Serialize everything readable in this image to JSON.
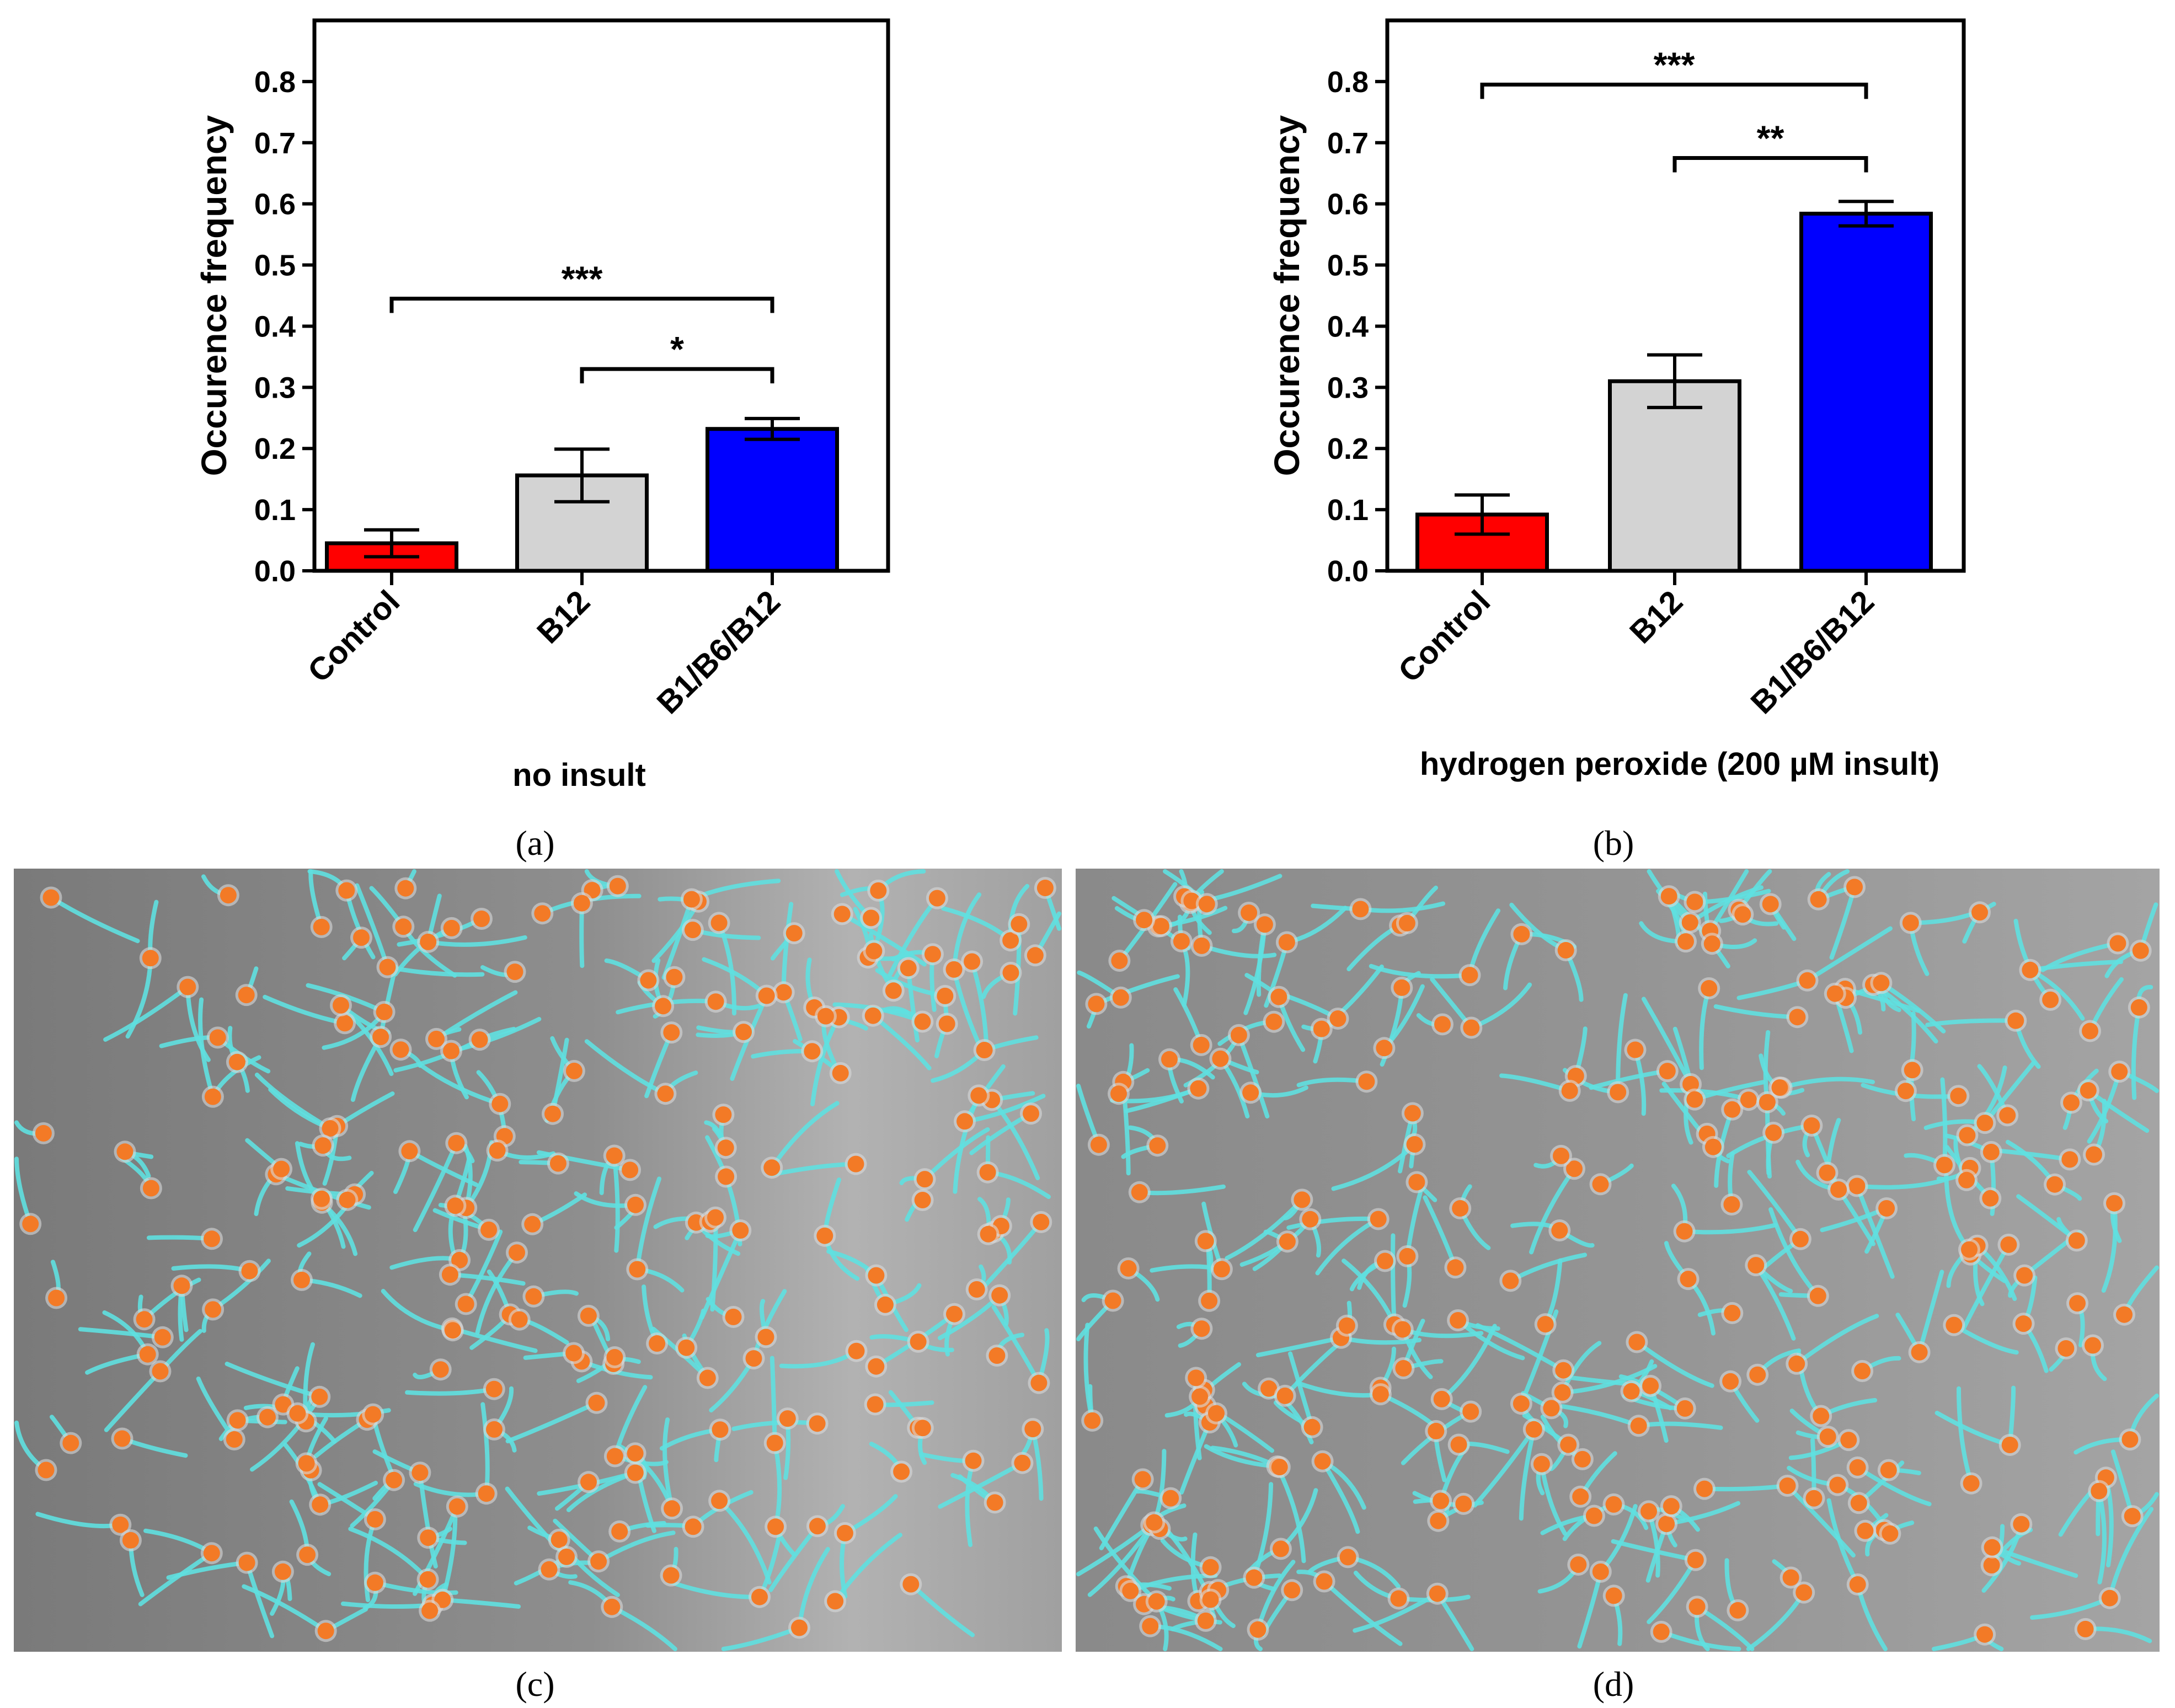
{
  "colors": {
    "control": "#ff0000",
    "b12": "#d3d3d3",
    "b1b6b12": "#0000ff",
    "soma": "#f37a26",
    "neurite": "#5fe0e0"
  },
  "chart_data": [
    {
      "type": "bar",
      "panel": "(a)",
      "xlabel": "no insult",
      "ylabel": "Occurence frequency",
      "ylim": [
        0,
        0.9
      ],
      "yticks": [
        "0.0",
        "0.1",
        "0.2",
        "0.3",
        "0.4",
        "0.5",
        "0.6",
        "0.7",
        "0.8"
      ],
      "categories": [
        "Control",
        "B12",
        "B1/B6/B12"
      ],
      "values": [
        0.045,
        0.156,
        0.232
      ],
      "errors": [
        0.022,
        0.043,
        0.017
      ],
      "significance": [
        {
          "from": 0,
          "to": 2,
          "label": "***",
          "y": 0.445
        },
        {
          "from": 1,
          "to": 2,
          "label": "*",
          "y": 0.33
        }
      ]
    },
    {
      "type": "bar",
      "panel": "(b)",
      "xlabel": "hydrogen peroxide (200 µM insult)",
      "ylabel": "Occurence frequency",
      "ylim": [
        0,
        0.9
      ],
      "yticks": [
        "0.0",
        "0.1",
        "0.2",
        "0.3",
        "0.4",
        "0.5",
        "0.6",
        "0.7",
        "0.8"
      ],
      "categories": [
        "Control",
        "B12",
        "B1/B6/B12"
      ],
      "values": [
        0.092,
        0.31,
        0.584
      ],
      "errors": [
        0.032,
        0.043,
        0.02
      ],
      "significance": [
        {
          "from": 0,
          "to": 2,
          "label": "***",
          "y": 0.795
        },
        {
          "from": 1,
          "to": 2,
          "label": "**",
          "y": 0.675
        }
      ]
    }
  ],
  "images": [
    {
      "panel": "(c)",
      "alt": "micrograph-no-insult"
    },
    {
      "panel": "(d)",
      "alt": "micrograph-hydrogen-peroxide"
    }
  ]
}
